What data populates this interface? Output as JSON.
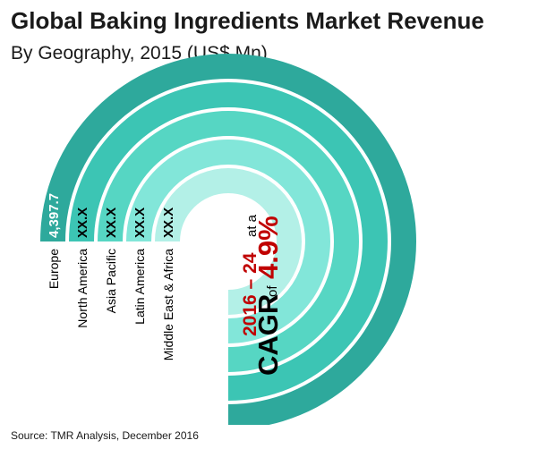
{
  "title": "Global Baking Ingredients Market Revenue",
  "subtitle": "By Geography, 2015 (US$ Mn)",
  "source": "Source: TMR Analysis, December 2016",
  "cagr": {
    "period": "2016 – 24",
    "at": "at a",
    "label": "CAGR",
    "of": "of",
    "value": "4.9%"
  },
  "colors": {
    "ring_colors": [
      "#2ea99c",
      "#3cc5b4",
      "#56d6c3",
      "#82e6d9",
      "#b3f0e7"
    ],
    "period_color": "#c00000",
    "value_color": "#c00000",
    "text_color": "#000000"
  },
  "chart_data": {
    "type": "radial-bar",
    "title": "Global Baking Ingredients Market Revenue",
    "subtitle": "By Geography, 2015 (US$ Mn)",
    "categories": [
      "Europe",
      "North America",
      "Asia Pacific",
      "Latin America",
      "Middle East & Africa"
    ],
    "value_labels": [
      "4,397.7",
      "XX.X",
      "XX.X",
      "XX.X",
      "XX.X"
    ],
    "values": [
      4397.7,
      null,
      null,
      null,
      null
    ]
  }
}
